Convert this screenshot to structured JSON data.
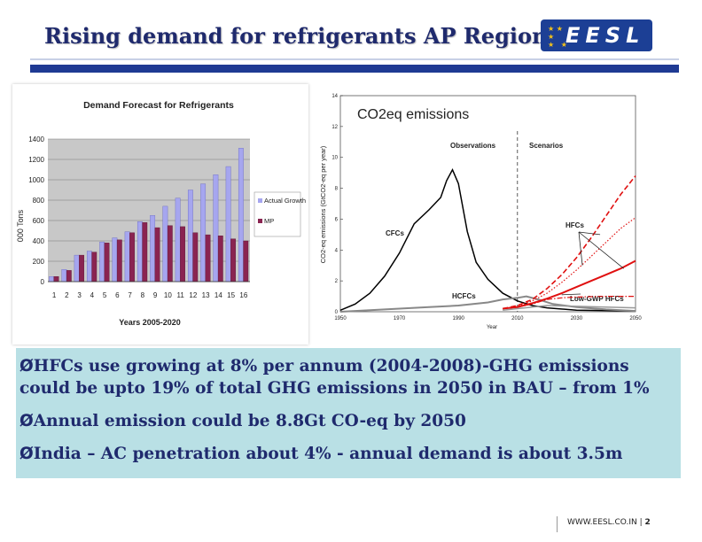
{
  "slide": {
    "title": "Rising demand for refrigerants AP Region",
    "logo_text": "EESL",
    "footer_site": "WWW.EESL.CO.IN",
    "footer_sep": " | ",
    "page_number": "2"
  },
  "bullets": [
    {
      "marker": "Ø",
      "text": "HFCs use growing at 8% per annum (2004-2008)-GHG emissions could be upto 19% of total GHG emissions in 2050 in BAU – from 1%"
    },
    {
      "marker": "Ø",
      "text": "Annual emission could be 8.8Gt CO-eq by 2050"
    },
    {
      "marker": "Ø",
      "text": "India – AC penetration about 4% - annual demand is about 3.5m"
    }
  ],
  "colors": {
    "title": "#1f2a6d",
    "bar_blue": "#a6a6ef",
    "bar_maroon": "#8a2451",
    "red": "#e01010",
    "panel": "#b9e0e5"
  },
  "chart_data": [
    {
      "type": "bar",
      "title": "Demand Forecast for Refrigerants",
      "xlabel": "Years 2005-2020",
      "ylabel": "000 Tons",
      "categories": [
        "1",
        "2",
        "3",
        "4",
        "5",
        "6",
        "7",
        "8",
        "9",
        "10",
        "11",
        "12",
        "13",
        "14",
        "15",
        "16"
      ],
      "ylim": [
        0,
        1400
      ],
      "yticks": [
        "0",
        "200",
        "400",
        "600",
        "800",
        "1000",
        "1200",
        "1400"
      ],
      "series": [
        {
          "name": "Actual Growth",
          "values": [
            50,
            120,
            260,
            300,
            390,
            430,
            490,
            590,
            650,
            740,
            820,
            900,
            960,
            1050,
            1130,
            1310
          ]
        },
        {
          "name": "MP",
          "values": [
            50,
            110,
            260,
            290,
            380,
            410,
            480,
            580,
            530,
            550,
            540,
            480,
            460,
            450,
            420,
            400
          ]
        }
      ]
    },
    {
      "type": "line",
      "title": "CO2eq emissions",
      "ylabel": "CO2-eq emissions (GtCO2-eq per year)",
      "xlabel": "Year",
      "xlim": [
        1950,
        2050
      ],
      "ylim": [
        0,
        14
      ],
      "xticks": [
        "1950",
        "1970",
        "1990",
        "2010",
        "2030",
        "2050"
      ],
      "yticks": [
        "0",
        "2",
        "4",
        "6",
        "8",
        "10",
        "12",
        "14"
      ],
      "annotations": [
        "Observations",
        "Scenarios",
        "CFCs",
        "HFCs",
        "HCFCs",
        "Low-GWP HFCs"
      ],
      "series": [
        {
          "name": "CFCs",
          "color": "#000000",
          "style": "solid",
          "x": [
            1950,
            1955,
            1960,
            1965,
            1970,
            1975,
            1980,
            1984,
            1986,
            1988,
            1990,
            1993,
            1996,
            2000,
            2005,
            2010,
            2015,
            2020,
            2030,
            2050
          ],
          "y": [
            0.1,
            0.5,
            1.2,
            2.3,
            3.8,
            5.7,
            6.6,
            7.4,
            8.5,
            9.2,
            8.3,
            5.2,
            3.2,
            2.1,
            1.2,
            0.7,
            0.4,
            0.25,
            0.1,
            0.05
          ]
        },
        {
          "name": "HCFCs",
          "color": "#888888",
          "style": "solid",
          "x": [
            1950,
            1970,
            1980,
            1990,
            2000,
            2005,
            2010,
            2013,
            2017,
            2022,
            2030,
            2040,
            2050
          ],
          "y": [
            0.0,
            0.2,
            0.3,
            0.4,
            0.6,
            0.8,
            0.9,
            1.0,
            0.8,
            0.5,
            0.3,
            0.15,
            0.05
          ]
        },
        {
          "name": "HFCs upper",
          "color": "#e01010",
          "style": "dashed",
          "x": [
            2005,
            2010,
            2015,
            2020,
            2025,
            2030,
            2035,
            2040,
            2045,
            2050
          ],
          "y": [
            0.2,
            0.4,
            0.8,
            1.5,
            2.4,
            3.5,
            4.8,
            6.2,
            7.6,
            8.8
          ]
        },
        {
          "name": "HFCs lower",
          "color": "#e01010",
          "style": "dotted",
          "x": [
            2005,
            2010,
            2015,
            2020,
            2025,
            2030,
            2035,
            2040,
            2045,
            2050
          ],
          "y": [
            0.2,
            0.35,
            0.7,
            1.2,
            1.9,
            2.7,
            3.6,
            4.5,
            5.4,
            6.1
          ]
        },
        {
          "name": "HFCs mid",
          "color": "#e01010",
          "style": "solid",
          "x": [
            2005,
            2010,
            2015,
            2020,
            2025,
            2030,
            2035,
            2040,
            2045,
            2050
          ],
          "y": [
            0.2,
            0.3,
            0.55,
            0.85,
            1.2,
            1.6,
            2.0,
            2.4,
            2.8,
            3.3
          ]
        },
        {
          "name": "Low-GWP HFCs",
          "color": "#e01010",
          "style": "dashdot",
          "x": [
            2010,
            2015,
            2020,
            2025,
            2030,
            2040,
            2050
          ],
          "y": [
            0.3,
            0.5,
            0.8,
            0.9,
            0.95,
            1.0,
            1.0
          ]
        },
        {
          "name": "HFC grey band",
          "color": "#999999",
          "style": "solid",
          "x": [
            2005,
            2010,
            2015,
            2020,
            2030,
            2040,
            2050
          ],
          "y": [
            0.1,
            0.2,
            0.3,
            0.4,
            0.35,
            0.3,
            0.25
          ]
        }
      ]
    }
  ]
}
